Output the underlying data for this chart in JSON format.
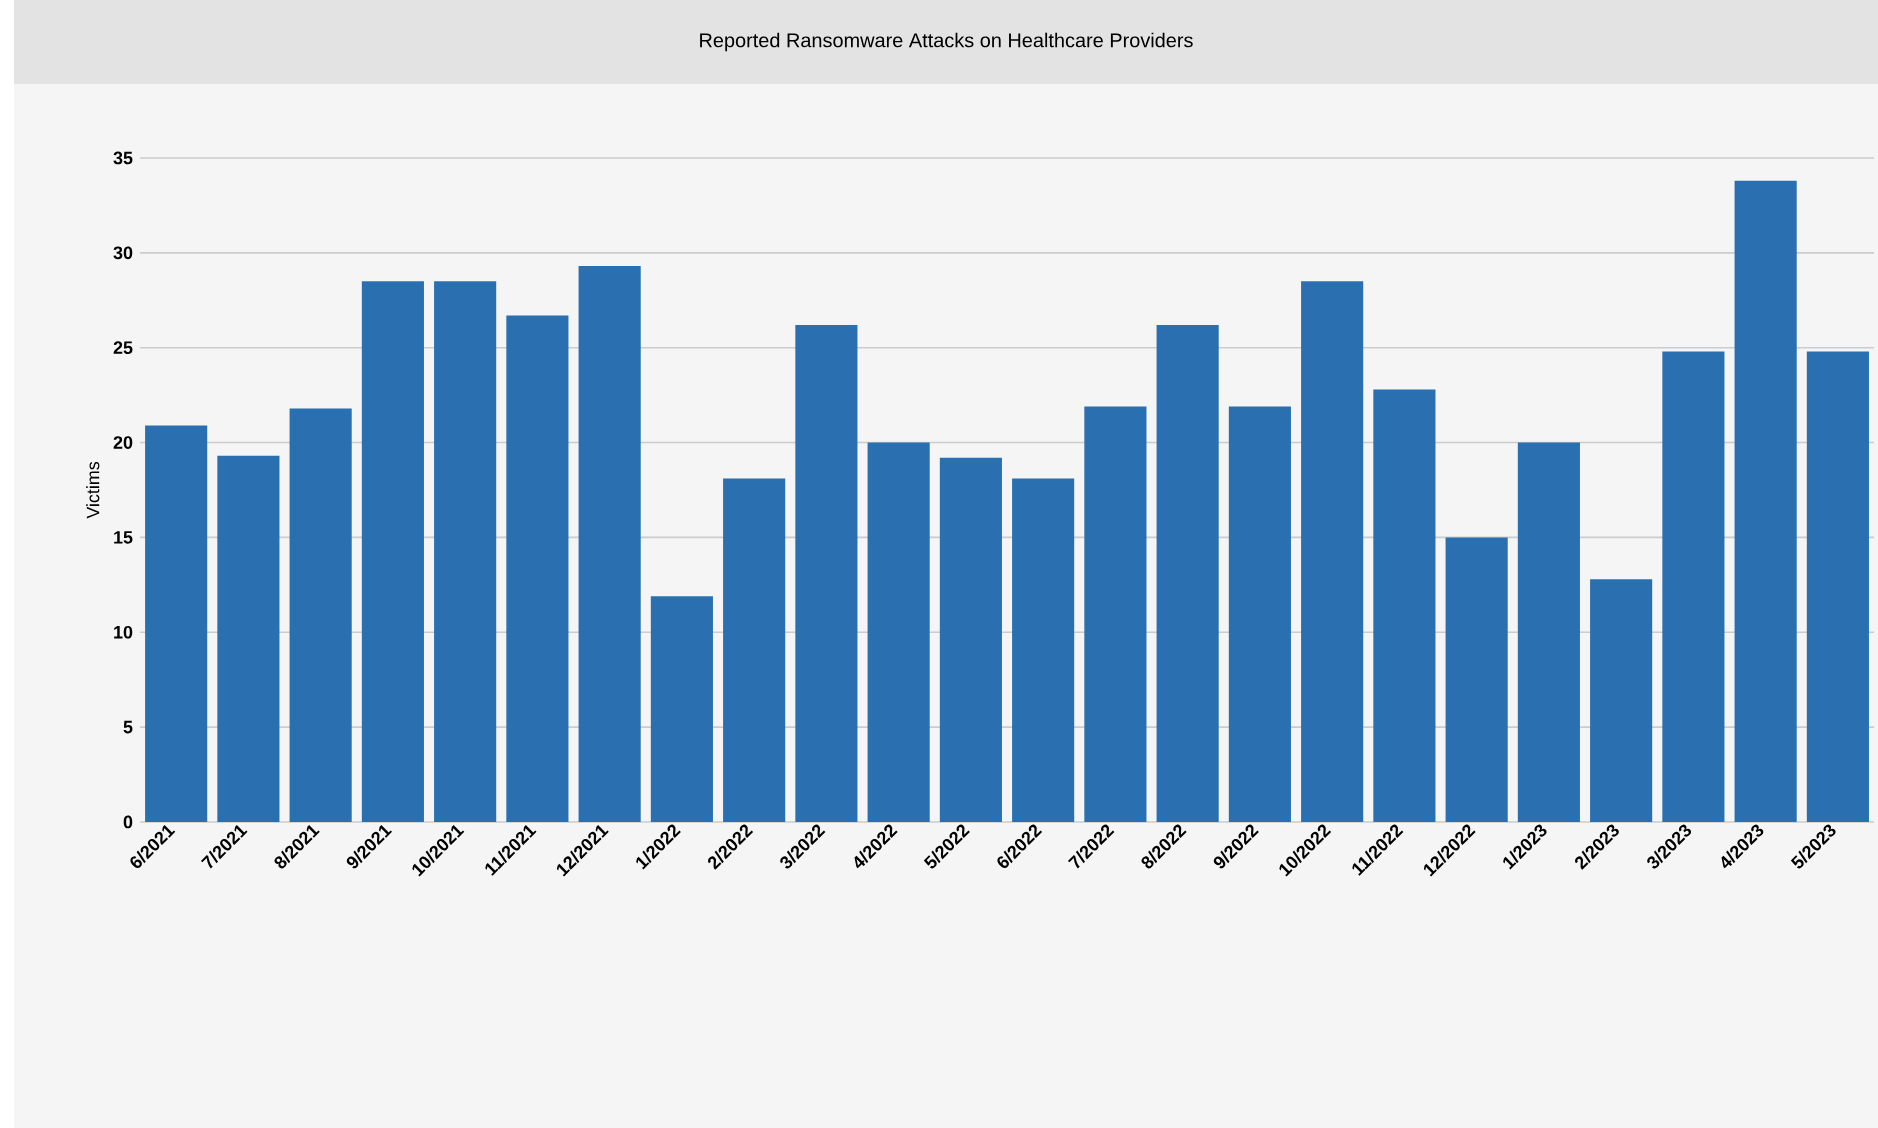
{
  "chart_data": {
    "type": "bar",
    "title": "Reported Ransomware Attacks on Healthcare Providers",
    "ylabel": "Victims",
    "categories": [
      "6/2021",
      "7/2021",
      "8/2021",
      "9/2021",
      "10/2021",
      "11/2021",
      "12/2021",
      "1/2022",
      "2/2022",
      "3/2022",
      "4/2022",
      "5/2022",
      "6/2022",
      "7/2022",
      "8/2022",
      "9/2022",
      "10/2022",
      "11/2022",
      "12/2022",
      "1/2023",
      "2/2023",
      "3/2023",
      "4/2023",
      "5/2023"
    ],
    "values": [
      20.9,
      19.3,
      21.8,
      28.5,
      28.5,
      26.7,
      29.3,
      11.9,
      18.1,
      26.2,
      20.0,
      19.2,
      18.1,
      21.9,
      26.2,
      21.9,
      28.5,
      22.8,
      15.0,
      20.0,
      12.8,
      24.8,
      33.8,
      24.8
    ],
    "color": "#2a70b0",
    "ylim": [
      0,
      35
    ],
    "yticks": [
      0,
      5,
      10,
      15,
      20,
      25,
      30,
      35
    ],
    "grid": "y",
    "legend": false
  }
}
